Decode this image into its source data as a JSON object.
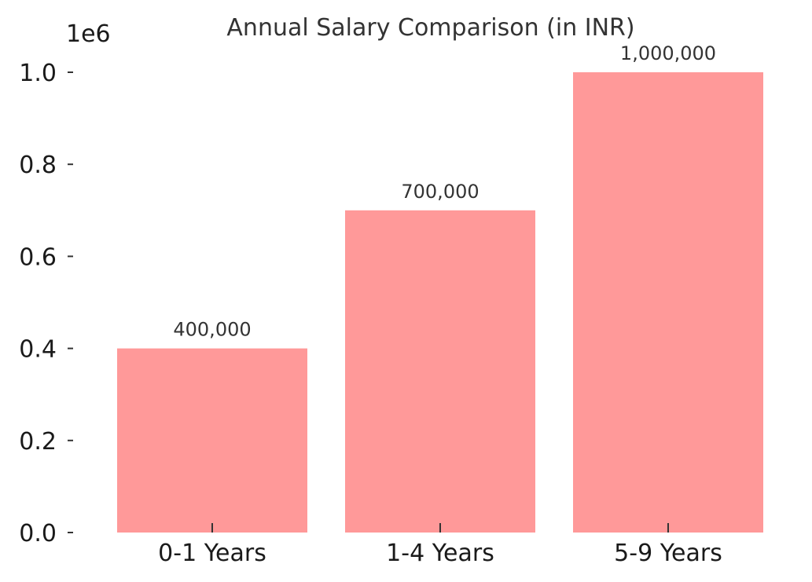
{
  "chart_data": {
    "type": "bar",
    "title": "Annual Salary Comparison (in INR)",
    "xlabel": "",
    "ylabel": "",
    "categories": [
      "0-1 Years",
      "1-4 Years",
      "5-9 Years"
    ],
    "values": [
      400000,
      700000,
      1000000
    ],
    "data_labels": [
      "400,000",
      "700,000",
      "1,000,000"
    ],
    "ylim": [
      0,
      1000000
    ],
    "y_ticks": [
      0,
      200000,
      400000,
      600000,
      800000,
      1000000
    ],
    "y_tick_labels": [
      "0.0",
      "0.2",
      "0.4",
      "0.6",
      "0.8",
      "1.0"
    ],
    "y_offset_label": "1e6",
    "bar_color": "#ff9999",
    "grid": false,
    "legend": "none"
  }
}
